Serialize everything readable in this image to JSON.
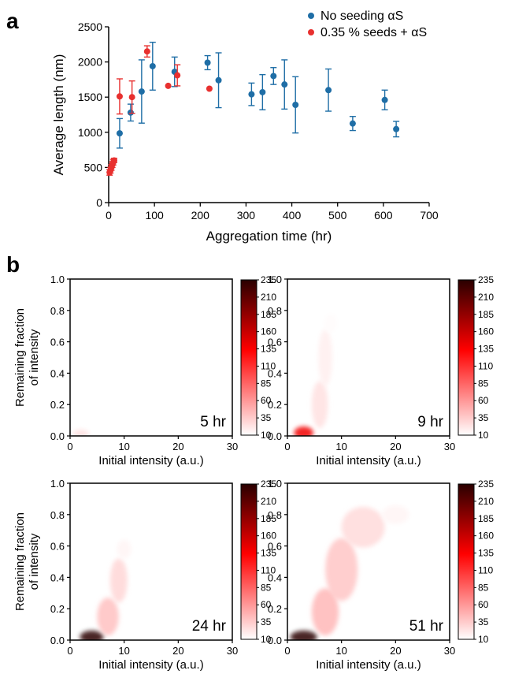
{
  "panel_a_letter": "a",
  "panel_b_letter": "b",
  "chart_data": [
    {
      "type": "scatter",
      "xlabel": "Aggregation time (hr)",
      "ylabel": "Average length (nm)",
      "xlim": [
        0,
        700
      ],
      "ylim": [
        0,
        2500
      ],
      "xticks": [
        "0",
        "100",
        "200",
        "300",
        "400",
        "500",
        "600",
        "700"
      ],
      "yticks": [
        "0",
        "500",
        "1000",
        "1500",
        "2000",
        "2500"
      ],
      "legend_position": "top-right",
      "grid": false,
      "series": [
        {
          "name": "No seeding αS",
          "color": "#1f6ea6",
          "points": [
            {
              "x": 24,
              "y": 985,
              "err": 210
            },
            {
              "x": 48,
              "y": 1280,
              "err": 120
            },
            {
              "x": 72,
              "y": 1580,
              "err": 450
            },
            {
              "x": 96,
              "y": 1940,
              "err": 340
            },
            {
              "x": 144,
              "y": 1860,
              "err": 210
            },
            {
              "x": 216,
              "y": 1990,
              "err": 100
            },
            {
              "x": 240,
              "y": 1740,
              "err": 390
            },
            {
              "x": 312,
              "y": 1540,
              "err": 160
            },
            {
              "x": 336,
              "y": 1570,
              "err": 250
            },
            {
              "x": 360,
              "y": 1800,
              "err": 120
            },
            {
              "x": 384,
              "y": 1680,
              "err": 350
            },
            {
              "x": 408,
              "y": 1390,
              "err": 400
            },
            {
              "x": 480,
              "y": 1600,
              "err": 300
            },
            {
              "x": 533,
              "y": 1125,
              "err": 100
            },
            {
              "x": 603,
              "y": 1460,
              "err": 140
            },
            {
              "x": 628,
              "y": 1045,
              "err": 110
            }
          ]
        },
        {
          "name": "0.35 % seeds + αS",
          "color": "#e8302f",
          "points": [
            {
              "x": 2,
              "y": 430,
              "err": 40
            },
            {
              "x": 4,
              "y": 460,
              "err": 40
            },
            {
              "x": 6,
              "y": 500,
              "err": 40
            },
            {
              "x": 8,
              "y": 540,
              "err": 40
            },
            {
              "x": 10,
              "y": 575,
              "err": 40
            },
            {
              "x": 12,
              "y": 600,
              "err": 30
            },
            {
              "x": 24,
              "y": 1510,
              "err": 250
            },
            {
              "x": 51,
              "y": 1500,
              "err": 230
            },
            {
              "x": 84,
              "y": 2150,
              "err": 80
            },
            {
              "x": 130,
              "y": 1660,
              "err": 0
            },
            {
              "x": 150,
              "y": 1810,
              "err": 150
            },
            {
              "x": 220,
              "y": 1620,
              "err": 0
            }
          ]
        }
      ]
    },
    {
      "type": "heatmap",
      "label": "5 hr",
      "xlabel": "Initial intensity (a.u.)",
      "ylabel": "Remaining fraction of intensity",
      "xlim": [
        0,
        30
      ],
      "ylim": [
        0,
        1.0
      ],
      "xticks": [
        "0",
        "10",
        "20",
        "30"
      ],
      "yticks": [
        "0.0",
        "0.2",
        "0.4",
        "0.6",
        "0.8",
        "1.0"
      ],
      "colorbar": {
        "min": 10,
        "max": 235,
        "ticks": [
          "235",
          "210",
          "185",
          "160",
          "135",
          "110",
          "85",
          "60",
          "35",
          "10"
        ],
        "colors": [
          "#ffffff",
          "#ff0000",
          "#2a0000"
        ]
      },
      "blobs": [
        {
          "x": 2,
          "y": 0.01,
          "sx": 1.5,
          "sy": 0.03,
          "v": 25
        }
      ]
    },
    {
      "type": "heatmap",
      "label": "9 hr",
      "xlabel": "Initial intensity (a.u.)",
      "ylabel": "",
      "xlim": [
        0,
        30
      ],
      "ylim": [
        0,
        1.0
      ],
      "xticks": [
        "0",
        "10",
        "20",
        "30"
      ],
      "yticks": [
        "0.0",
        "0.2",
        "0.4",
        "0.6",
        "0.8",
        "1.0"
      ],
      "colorbar": {
        "min": 10,
        "max": 235,
        "ticks": [
          "235",
          "210",
          "185",
          "160",
          "135",
          "110",
          "85",
          "60",
          "35",
          "10"
        ],
        "colors": [
          "#ffffff",
          "#ff0000",
          "#2a0000"
        ]
      },
      "blobs": [
        {
          "x": 3,
          "y": 0.02,
          "sx": 1.8,
          "sy": 0.04,
          "v": 140
        },
        {
          "x": 6,
          "y": 0.2,
          "sx": 1.5,
          "sy": 0.15,
          "v": 25
        },
        {
          "x": 7,
          "y": 0.5,
          "sx": 1.3,
          "sy": 0.18,
          "v": 18
        },
        {
          "x": 8,
          "y": 0.72,
          "sx": 1.2,
          "sy": 0.06,
          "v": 12
        }
      ]
    },
    {
      "type": "heatmap",
      "label": "24 hr",
      "xlabel": "Initial intensity (a.u.)",
      "ylabel": "Remaining fraction of intensity",
      "xlim": [
        0,
        30
      ],
      "ylim": [
        0,
        1.0
      ],
      "xticks": [
        "0",
        "10",
        "20",
        "30"
      ],
      "yticks": [
        "0.0",
        "0.2",
        "0.4",
        "0.6",
        "0.8",
        "1.0"
      ],
      "colorbar": {
        "min": 10,
        "max": 235,
        "ticks": [
          "235",
          "210",
          "185",
          "160",
          "135",
          "110",
          "85",
          "60",
          "35",
          "10"
        ],
        "colors": [
          "#ffffff",
          "#ff0000",
          "#2a0000"
        ]
      },
      "blobs": [
        {
          "x": 4,
          "y": 0.02,
          "sx": 2.2,
          "sy": 0.04,
          "v": 235
        },
        {
          "x": 7,
          "y": 0.15,
          "sx": 2.0,
          "sy": 0.12,
          "v": 40
        },
        {
          "x": 9,
          "y": 0.38,
          "sx": 1.6,
          "sy": 0.14,
          "v": 30
        },
        {
          "x": 10,
          "y": 0.58,
          "sx": 1.3,
          "sy": 0.06,
          "v": 15
        }
      ]
    },
    {
      "type": "heatmap",
      "label": "51 hr",
      "xlabel": "Initial intensity (a.u.)",
      "ylabel": "",
      "xlim": [
        0,
        30
      ],
      "ylim": [
        0,
        1.0
      ],
      "xticks": [
        "0",
        "10",
        "20",
        "30"
      ],
      "yticks": [
        "0.0",
        "0.2",
        "0.4",
        "0.6",
        "0.8",
        "1.0"
      ],
      "colorbar": {
        "min": 10,
        "max": 235,
        "ticks": [
          "235",
          "210",
          "185",
          "160",
          "135",
          "110",
          "85",
          "60",
          "35",
          "10"
        ],
        "colors": [
          "#ffffff",
          "#ff0000",
          "#2a0000"
        ]
      },
      "blobs": [
        {
          "x": 3,
          "y": 0.02,
          "sx": 2.5,
          "sy": 0.04,
          "v": 235
        },
        {
          "x": 7,
          "y": 0.18,
          "sx": 2.5,
          "sy": 0.15,
          "v": 45
        },
        {
          "x": 10,
          "y": 0.45,
          "sx": 3.0,
          "sy": 0.2,
          "v": 38
        },
        {
          "x": 14,
          "y": 0.72,
          "sx": 4.0,
          "sy": 0.13,
          "v": 28
        },
        {
          "x": 20,
          "y": 0.8,
          "sx": 2.5,
          "sy": 0.06,
          "v": 15
        }
      ]
    }
  ]
}
